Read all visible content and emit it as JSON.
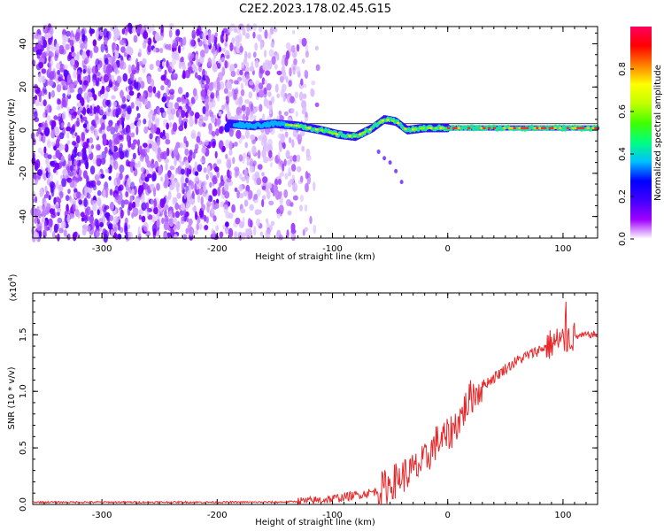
{
  "title": "C2E2.2023.178.02.45.G15",
  "chart_data": [
    {
      "type": "heatmap",
      "xlabel": "Height of straight line (km)",
      "ylabel": "Frequency (Hz)",
      "xlim": [
        -360,
        130
      ],
      "ylim": [
        -50,
        48
      ],
      "x_ticks": [
        -300,
        -200,
        -100,
        0,
        100
      ],
      "y_ticks": [
        -40,
        -20,
        0,
        20,
        40
      ],
      "x_tick_labels": [
        "-300",
        "-200",
        "-100",
        "0",
        "100"
      ],
      "y_tick_labels": [
        "-40",
        "-20",
        "0",
        "20",
        "40"
      ],
      "colorbar": {
        "label": "Normalized spectral amplitude",
        "range": [
          0,
          1
        ],
        "ticks": [
          0,
          0.2,
          0.4,
          0.6,
          0.8
        ],
        "tick_labels": [
          "0.0",
          "0.2",
          "0.4",
          "0.6",
          "0.8"
        ],
        "colormap": [
          "#ffffff",
          "#a000ff",
          "#4000ff",
          "#0000ff",
          "#00c0ff",
          "#00ff80",
          "#40ff00",
          "#c0ff00",
          "#ffff00",
          "#ff8000",
          "#ff0000",
          "#ff0060"
        ]
      },
      "ridge": {
        "description_points": [
          {
            "x": -190,
            "y": 3
          },
          {
            "x": -170,
            "y": 2
          },
          {
            "x": -150,
            "y": 3
          },
          {
            "x": -130,
            "y": 2
          },
          {
            "x": -110,
            "y": 0
          },
          {
            "x": -95,
            "y": -2
          },
          {
            "x": -80,
            "y": -3
          },
          {
            "x": -65,
            "y": 1
          },
          {
            "x": -55,
            "y": 5
          },
          {
            "x": -45,
            "y": 4
          },
          {
            "x": -35,
            "y": 0
          },
          {
            "x": -20,
            "y": 1
          },
          {
            "x": 0,
            "y": 1
          },
          {
            "x": 40,
            "y": 1
          },
          {
            "x": 80,
            "y": 1
          },
          {
            "x": 100,
            "y": 1
          },
          {
            "x": 130,
            "y": 1
          }
        ],
        "reference_line_y": 3
      }
    },
    {
      "type": "line",
      "xlabel": "Height of straight line (km)",
      "ylabel": "SNR (10 * v/v)",
      "y_multiplier": "(x10",
      "y_multiplier_exp": "4",
      "y_multiplier_close": ")",
      "xlim": [
        -360,
        130
      ],
      "ylim": [
        0,
        1.87
      ],
      "x_ticks": [
        -300,
        -200,
        -100,
        0,
        100
      ],
      "y_ticks": [
        0,
        0.5,
        1.0,
        1.5
      ],
      "x_tick_labels": [
        "-300",
        "-200",
        "-100",
        "0",
        "100"
      ],
      "y_tick_labels": [
        "0.0",
        "0.5",
        "1.0",
        "1.5"
      ],
      "series": [
        {
          "color": "#e8282a",
          "x": [
            -360,
            -300,
            -200,
            -150,
            -120,
            -100,
            -80,
            -60,
            -50,
            -40,
            -30,
            -20,
            -10,
            0,
            10,
            20,
            30,
            40,
            50,
            60,
            70,
            80,
            90,
            100,
            110,
            120,
            130
          ],
          "y": [
            0.02,
            0.02,
            0.02,
            0.02,
            0.03,
            0.05,
            0.08,
            0.12,
            0.18,
            0.25,
            0.3,
            0.38,
            0.55,
            0.6,
            0.75,
            0.95,
            1.05,
            1.12,
            1.2,
            1.27,
            1.32,
            1.37,
            1.42,
            1.46,
            1.48,
            1.5,
            1.5
          ]
        }
      ]
    }
  ]
}
